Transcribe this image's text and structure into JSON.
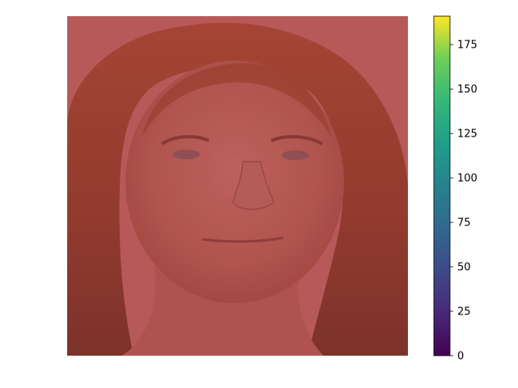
{
  "chart_data": {
    "type": "heatmap",
    "title": "",
    "xlabel": "",
    "ylabel": "",
    "axes_visible": false,
    "image_content": "photograph of a face with long reddish-brown hair, overlaid with a semi-transparent red tint",
    "overlay_color": "#b85a5a",
    "colorbar": {
      "colormap": "viridis",
      "range": [
        0,
        191
      ],
      "ticks": [
        0,
        25,
        50,
        75,
        100,
        125,
        150,
        175
      ],
      "tick_labels": [
        "0",
        "25",
        "50",
        "75",
        "100",
        "125",
        "150",
        "175"
      ],
      "placement": "right"
    }
  }
}
